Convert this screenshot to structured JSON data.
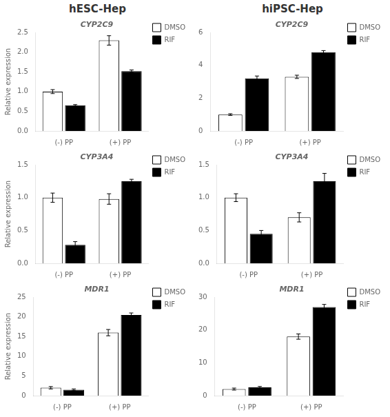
{
  "annotations": [
    "hESC-Hep",
    "hiPSC-Hep"
  ],
  "chart_data": [
    {
      "type": "bar",
      "title": "CYP2C9",
      "y_label": "Relative expression",
      "categories": [
        "(-) PP",
        "(+) PP"
      ],
      "series": [
        {
          "name": "DMSO",
          "color": "white",
          "values": [
            1.0,
            2.3
          ],
          "errors": [
            0.05,
            0.12
          ]
        },
        {
          "name": "RIF",
          "color": "black",
          "values": [
            0.65,
            1.52
          ],
          "errors": [
            0.02,
            0.03
          ]
        }
      ],
      "ylim": [
        0,
        2.5
      ],
      "yticks": [
        {
          "value": 0,
          "label": "0.0"
        },
        0.5,
        {
          "value": 1,
          "label": "1.0"
        },
        1.5,
        {
          "value": 2,
          "label": "2.0"
        },
        2.5
      ],
      "grid": false,
      "legend": "right"
    },
    {
      "type": "bar",
      "title": "CYP2C9",
      "categories": [
        "(-) PP",
        "(+) PP"
      ],
      "series": [
        {
          "name": "DMSO",
          "color": "white",
          "values": [
            1.0,
            3.3
          ],
          "errors": [
            0.05,
            0.1
          ]
        },
        {
          "name": "RIF",
          "color": "black",
          "values": [
            3.2,
            4.8
          ],
          "errors": [
            0.15,
            0.1
          ]
        }
      ],
      "ylim": [
        0,
        6
      ],
      "yticks": [
        0,
        2,
        4,
        6
      ],
      "grid": false,
      "legend": "right"
    },
    {
      "type": "bar",
      "title": "CYP3A4",
      "y_label": "Relative expression",
      "categories": [
        "(-) PP",
        "(+) PP"
      ],
      "series": [
        {
          "name": "DMSO",
          "color": "white",
          "values": [
            1.0,
            0.98
          ],
          "errors": [
            0.07,
            0.08
          ]
        },
        {
          "name": "RIF",
          "color": "black",
          "values": [
            0.28,
            1.25
          ],
          "errors": [
            0.05,
            0.03
          ]
        }
      ],
      "ylim": [
        0,
        1.5
      ],
      "yticks": [
        {
          "value": 0,
          "label": "0.0"
        },
        0.5,
        {
          "value": 1,
          "label": "1.0"
        },
        1.5
      ],
      "grid": false,
      "legend": "right"
    },
    {
      "type": "bar",
      "title": "CYP3A4",
      "categories": [
        "(-) PP",
        "(+) PP"
      ],
      "series": [
        {
          "name": "DMSO",
          "color": "white",
          "values": [
            1.0,
            0.7
          ],
          "errors": [
            0.06,
            0.07
          ]
        },
        {
          "name": "RIF",
          "color": "black",
          "values": [
            0.45,
            1.25
          ],
          "errors": [
            0.05,
            0.12
          ]
        }
      ],
      "ylim": [
        0,
        1.5
      ],
      "yticks": [
        {
          "value": 0,
          "label": "0.0"
        },
        0.5,
        {
          "value": 1,
          "label": "1.0"
        },
        1.5
      ],
      "grid": false,
      "legend": "right"
    },
    {
      "type": "bar",
      "title": "MDR1",
      "y_label": "Relative expression",
      "categories": [
        "(-) PP",
        "(+) PP"
      ],
      "series": [
        {
          "name": "DMSO",
          "color": "white",
          "values": [
            2.0,
            16.0
          ],
          "errors": [
            0.3,
            0.8
          ]
        },
        {
          "name": "RIF",
          "color": "black",
          "values": [
            1.5,
            20.5
          ],
          "errors": [
            0.2,
            0.5
          ]
        }
      ],
      "ylim": [
        0,
        25
      ],
      "yticks": [
        0,
        5,
        10,
        15,
        20,
        25
      ],
      "grid": false,
      "legend": "right"
    },
    {
      "type": "bar",
      "title": "MDR1",
      "categories": [
        "(-) PP",
        "(+) PP"
      ],
      "series": [
        {
          "name": "DMSO",
          "color": "white",
          "values": [
            2.0,
            18.0
          ],
          "errors": [
            0.3,
            0.8
          ]
        },
        {
          "name": "RIF",
          "color": "black",
          "values": [
            2.5,
            27.0
          ],
          "errors": [
            0.3,
            0.8
          ]
        }
      ],
      "ylim": [
        0,
        30
      ],
      "yticks": [
        0,
        10,
        20,
        30
      ],
      "grid": false,
      "legend": "right"
    }
  ]
}
